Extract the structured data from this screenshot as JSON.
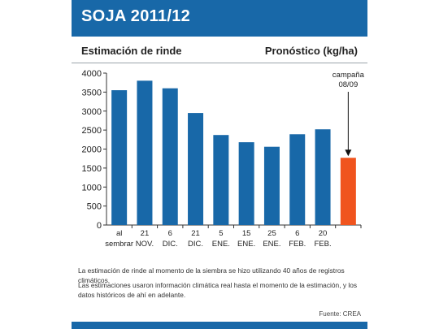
{
  "header": {
    "title": "SOJA 2011/12",
    "color": "#1868a8"
  },
  "subheader": {
    "left": "Estimación de rinde",
    "right": "Pronóstico (kg/ha)"
  },
  "chart_data": {
    "type": "bar",
    "title": "SOJA 2011/12",
    "xlabel": "",
    "ylabel": "Pronóstico (kg/ha)",
    "ylim": [
      0,
      4000
    ],
    "yticks": [
      0,
      500,
      1000,
      1500,
      2000,
      2500,
      3000,
      3500,
      4000
    ],
    "grid": false,
    "categories": [
      [
        "al",
        "sembrar"
      ],
      [
        "21",
        "NOV."
      ],
      [
        "6",
        "DIC."
      ],
      [
        "21",
        "DIC."
      ],
      [
        "5",
        "ENE."
      ],
      [
        "15",
        "ENE."
      ],
      [
        "25",
        "ENE."
      ],
      [
        "6",
        "FEB."
      ],
      [
        "20",
        "FEB."
      ],
      [
        "",
        ""
      ]
    ],
    "values": [
      3550,
      3800,
      3600,
      2950,
      2370,
      2180,
      2060,
      2390,
      2520,
      1770
    ],
    "colors": [
      "#1868a8",
      "#1868a8",
      "#1868a8",
      "#1868a8",
      "#1868a8",
      "#1868a8",
      "#1868a8",
      "#1868a8",
      "#1868a8",
      "#f0541e"
    ],
    "annotation": {
      "lines": [
        "campaña",
        "08/09"
      ],
      "target_index": 9
    }
  },
  "notes": [
    "La estimación de rinde al momento de la siembra se hizo utilizando 40 años de registros climáticos.",
    "Las estimaciones usaron información climática real hasta el momento de la estimación, y los datos históricos de ahí en adelante."
  ],
  "source": "Fuente: CREA"
}
